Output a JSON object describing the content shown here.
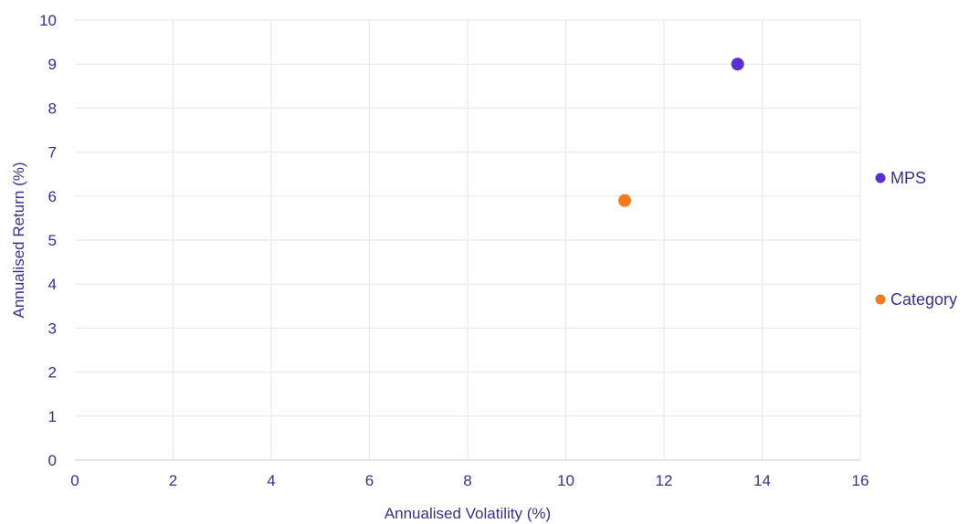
{
  "chart_data": {
    "type": "scatter",
    "xlabel": "Annualised Volatility (%)",
    "ylabel": "Annualised Return (%)",
    "xlim": [
      0,
      16
    ],
    "ylim": [
      0,
      10
    ],
    "xticks": [
      "0",
      "2",
      "4",
      "6",
      "8",
      "10",
      "12",
      "14",
      "16"
    ],
    "yticks": [
      "0",
      "1",
      "2",
      "3",
      "4",
      "5",
      "6",
      "7",
      "8",
      "9",
      "10"
    ],
    "grid": true,
    "legend_position": "right",
    "series": [
      {
        "name": "MPS",
        "color": "#5b2fd0",
        "points": [
          {
            "x": 13.5,
            "y": 9.0
          }
        ]
      },
      {
        "name": "Category",
        "color": "#f47a1a",
        "points": [
          {
            "x": 11.2,
            "y": 5.9
          }
        ]
      }
    ]
  }
}
